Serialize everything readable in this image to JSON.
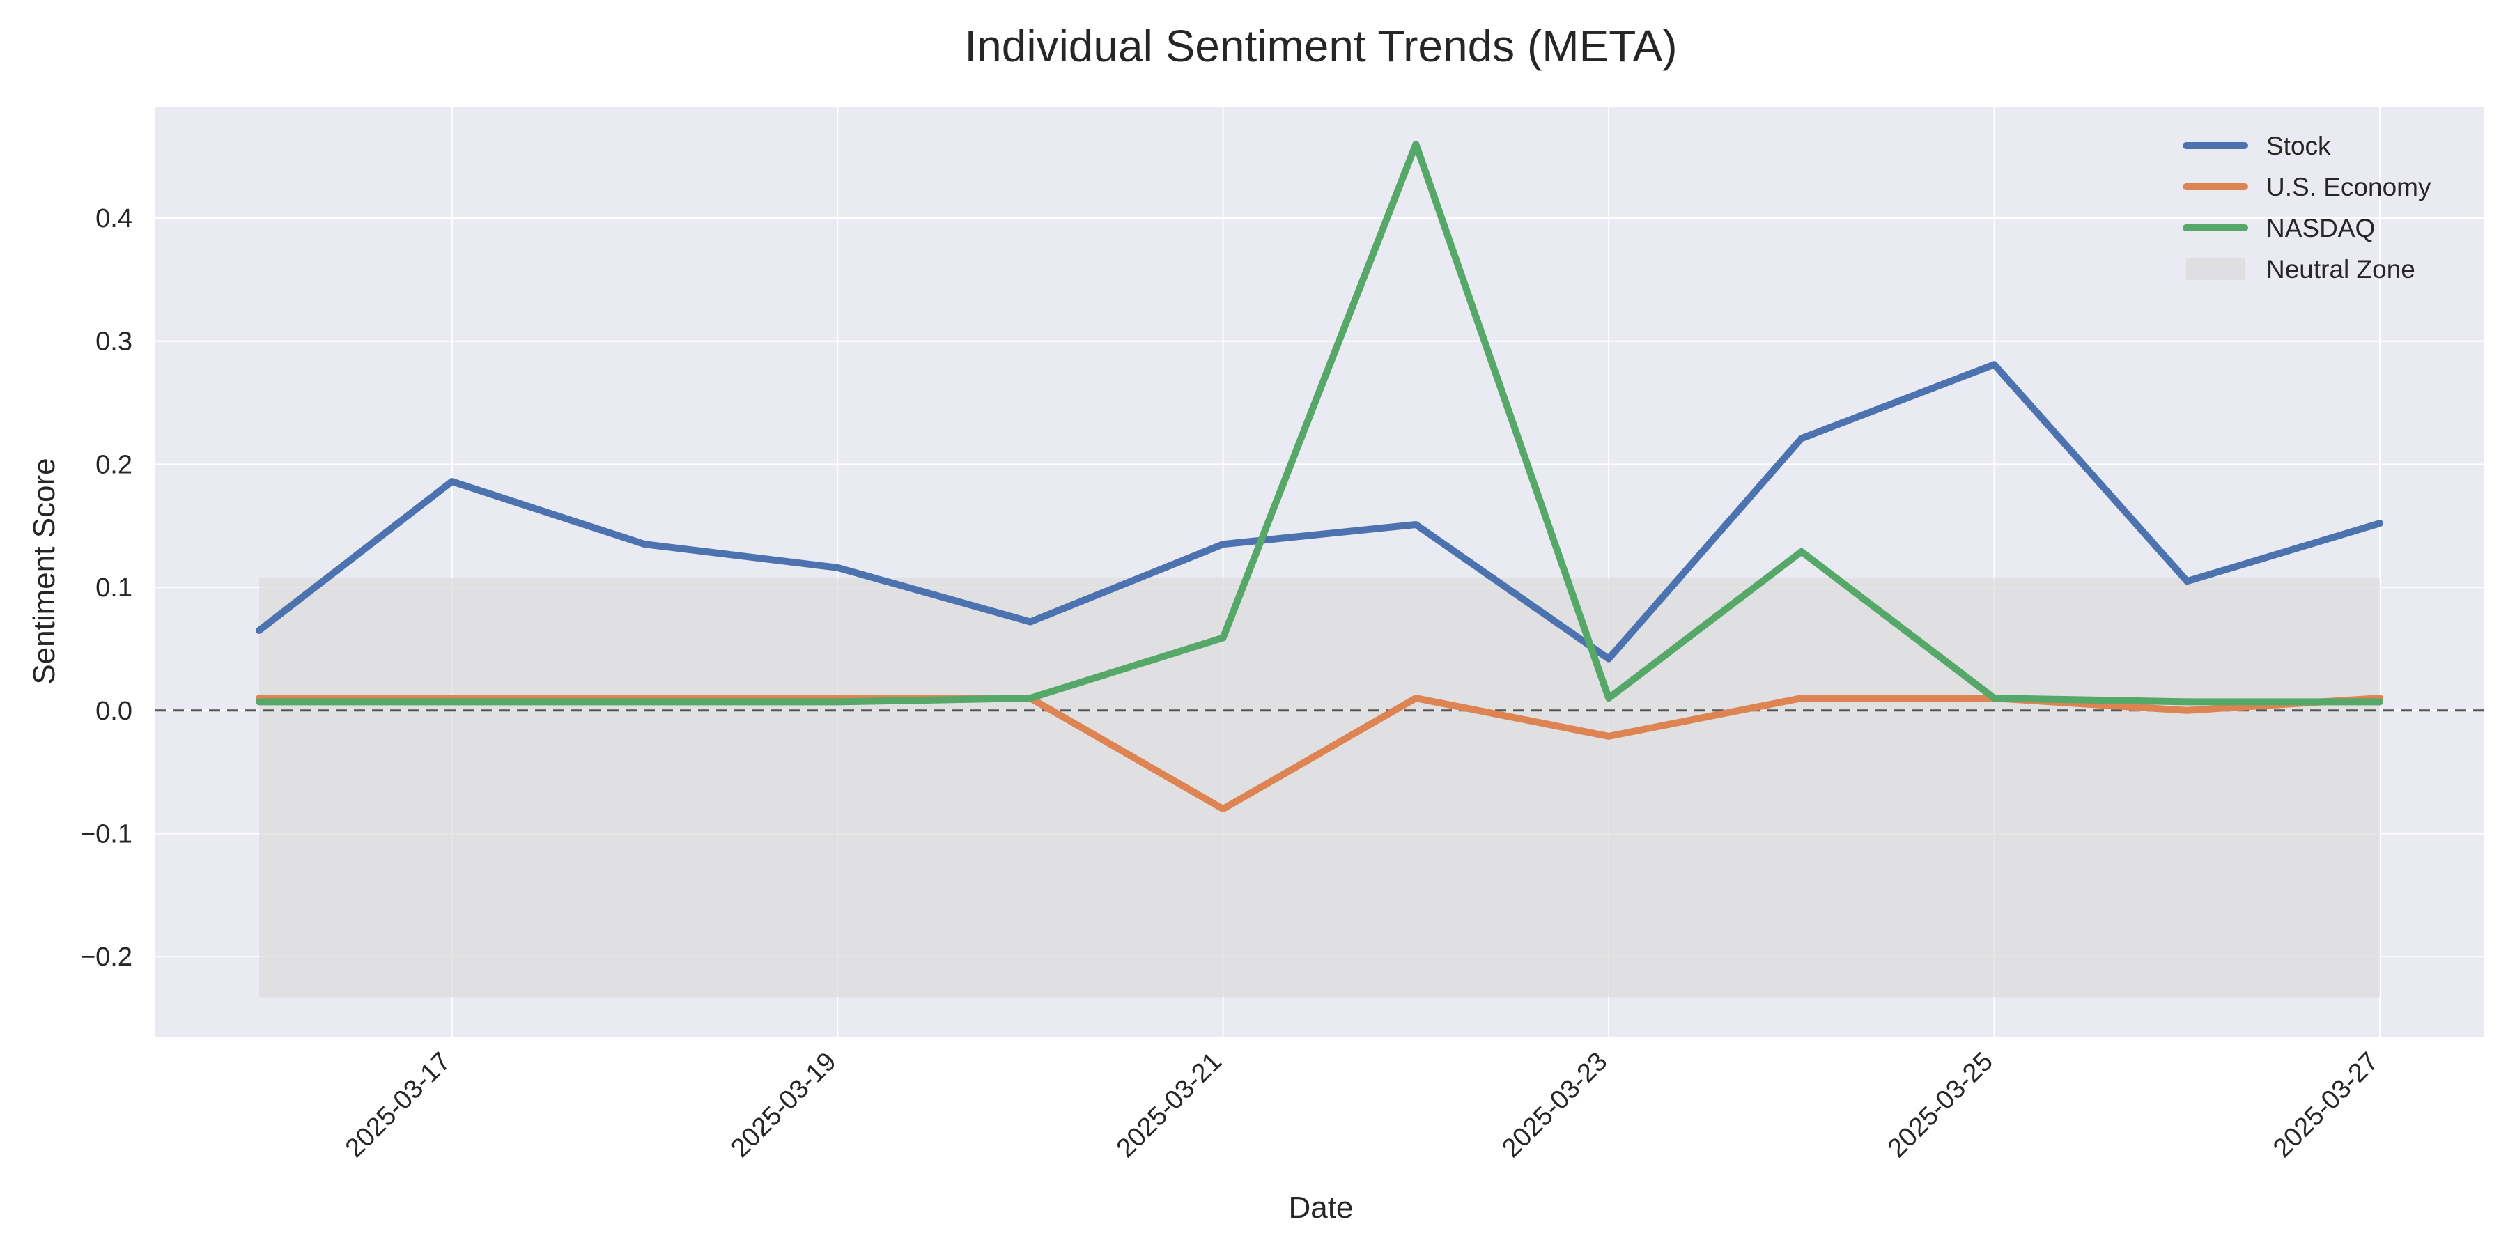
{
  "chart_data": {
    "type": "line",
    "title": "Individual Sentiment Trends (META)",
    "xlabel": "Date",
    "ylabel": "Sentiment Score",
    "x": [
      "2025-03-16",
      "2025-03-17",
      "2025-03-18",
      "2025-03-19",
      "2025-03-20",
      "2025-03-21",
      "2025-03-22",
      "2025-03-23",
      "2025-03-24",
      "2025-03-25",
      "2025-03-26",
      "2025-03-27"
    ],
    "x_ticks": [
      "2025-03-17",
      "2025-03-19",
      "2025-03-21",
      "2025-03-23",
      "2025-03-25",
      "2025-03-27"
    ],
    "xlim": [
      "2025-03-15",
      "2025-03-27"
    ],
    "ylim": [
      -0.265,
      0.49
    ],
    "y_ticks": [
      -0.2,
      -0.1,
      0.0,
      0.1,
      0.2,
      0.3,
      0.4
    ],
    "y_tick_labels": [
      "−0.2",
      "−0.1",
      "0.0",
      "0.1",
      "0.2",
      "0.3",
      "0.4"
    ],
    "grid": true,
    "legend_position": "top-right",
    "series": [
      {
        "name": "Stock",
        "color": "#4c72b0",
        "values": [
          0.065,
          0.186,
          0.135,
          0.116,
          0.072,
          0.135,
          0.151,
          0.042,
          0.221,
          0.281,
          0.105,
          0.152
        ]
      },
      {
        "name": "U.S. Economy",
        "color": "#dd8452",
        "values": [
          0.01,
          0.01,
          0.01,
          0.01,
          0.01,
          -0.08,
          0.01,
          -0.021,
          0.01,
          0.01,
          0.0,
          0.01
        ]
      },
      {
        "name": "NASDAQ",
        "color": "#55a868",
        "values": [
          0.007,
          0.007,
          0.007,
          0.007,
          0.01,
          0.059,
          0.46,
          0.01,
          0.129,
          0.01,
          0.007,
          0.007
        ]
      }
    ],
    "neutral_zone": {
      "name": "Neutral Zone",
      "y0": -0.233,
      "y1": 0.108,
      "x_start": "2025-03-16",
      "x_end": "2025-03-27",
      "color": "#dcdcdc"
    },
    "reference_line": {
      "y": 0.0,
      "style": "dashed",
      "color": "#555555"
    }
  }
}
